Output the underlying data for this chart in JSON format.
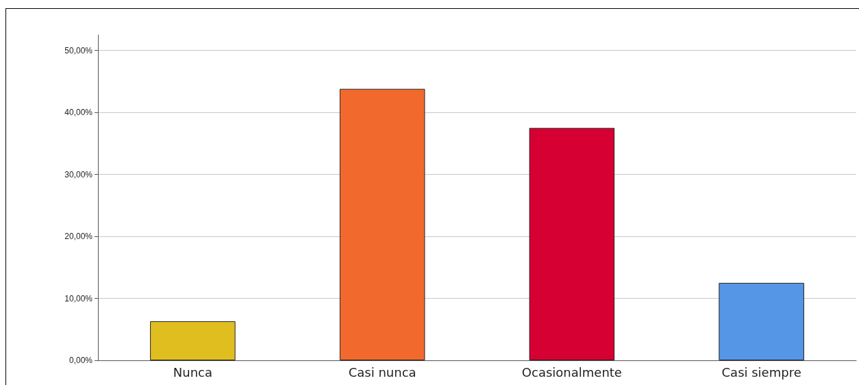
{
  "chart_data": {
    "type": "bar",
    "categories": [
      "Nunca",
      "Casi nunca",
      "Ocasionalmente",
      "Casi siempre"
    ],
    "values": [
      6.3,
      43.8,
      37.5,
      12.5
    ],
    "colors": [
      "#e1be20",
      "#f2692d",
      "#d60032",
      "#5596e6"
    ],
    "ylim": [
      0,
      52.5
    ],
    "yticks": [
      {
        "value": 0,
        "label": "0,00%"
      },
      {
        "value": 10,
        "label": "10,00%"
      },
      {
        "value": 20,
        "label": "20,00%"
      },
      {
        "value": 30,
        "label": "30,00%"
      },
      {
        "value": 40,
        "label": "40,00%"
      },
      {
        "value": 50,
        "label": "50,00%"
      }
    ],
    "grid": "y"
  }
}
